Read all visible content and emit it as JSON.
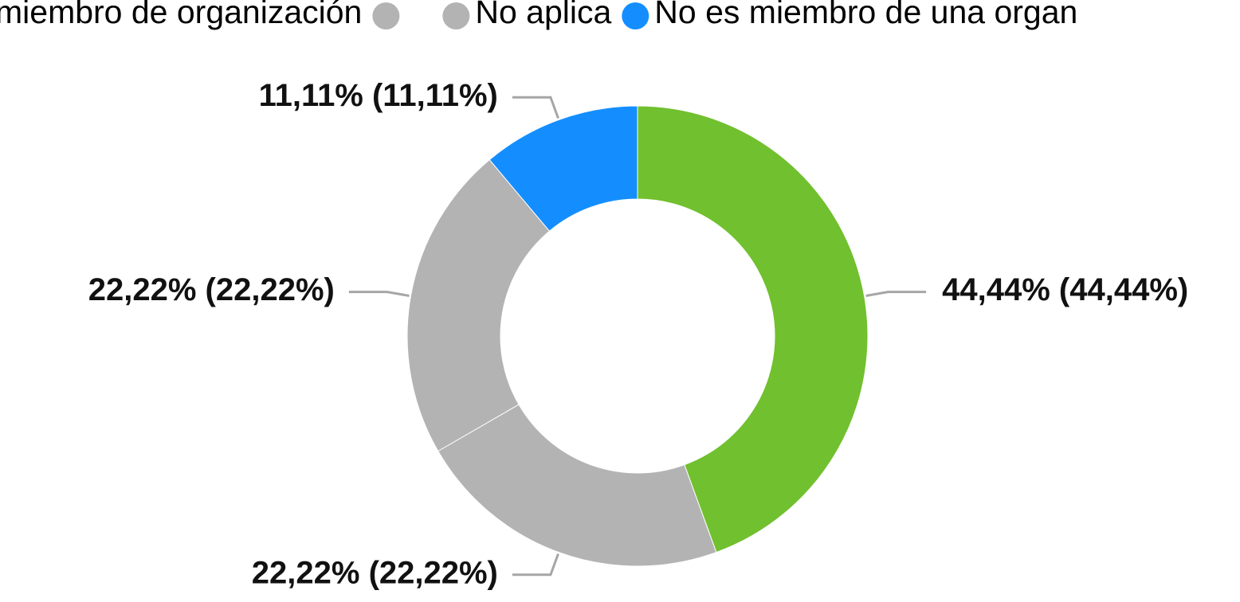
{
  "chart_data": {
    "type": "donut",
    "series": [
      {
        "name": "miembro de organización",
        "color": "#71c02f"
      },
      {
        "name": null,
        "color": "#b3b3b3"
      },
      {
        "name": "No aplica",
        "color": "#b3b3b3"
      },
      {
        "name": "No es miembro de una organ",
        "color": "#148eff"
      }
    ],
    "values": [
      44.44,
      22.22,
      22.22,
      11.11
    ],
    "value_labels": [
      "44,44% (44,44%)",
      "22,22% (22,22%)",
      "22,22% (22,22%)",
      "11,11% (11,11%)"
    ]
  }
}
